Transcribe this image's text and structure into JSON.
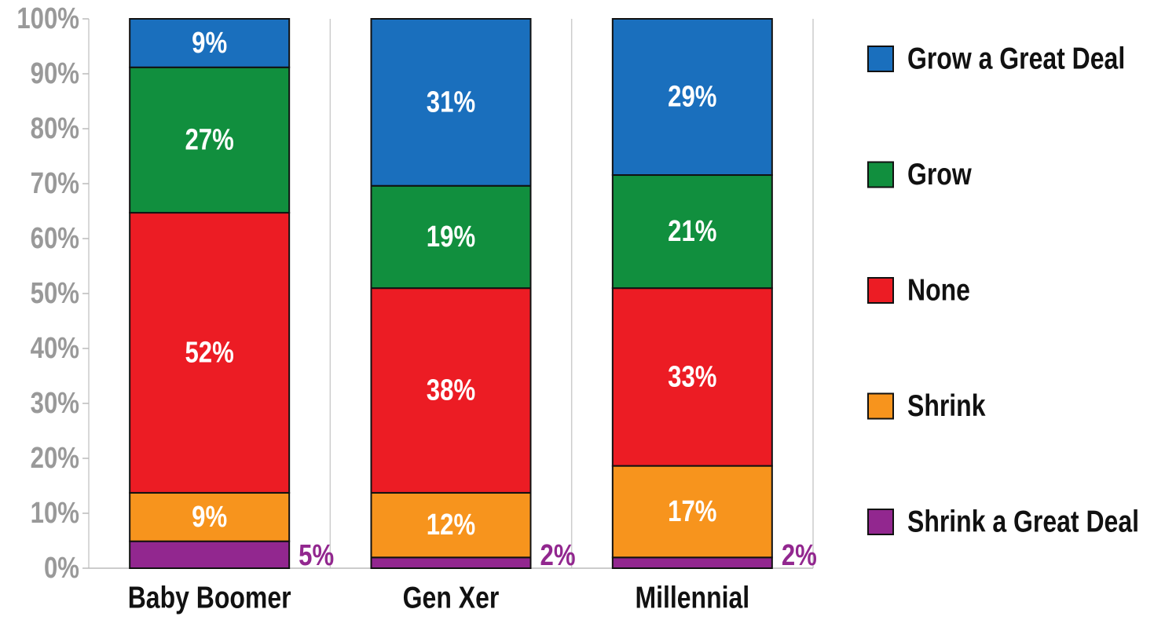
{
  "chart_data": {
    "type": "bar",
    "stacking": "percent",
    "categories": [
      "Baby Boomer",
      "Gen Xer",
      "Millennial"
    ],
    "series": [
      {
        "name": "Shrink a Great Deal",
        "color": "#92278f",
        "values": [
          5,
          2,
          2
        ],
        "value_labels": [
          "5%",
          "2%",
          "2%"
        ]
      },
      {
        "name": "Shrink",
        "color": "#f7941d",
        "values": [
          9,
          12,
          17
        ],
        "value_labels": [
          "9%",
          "12%",
          "17%"
        ]
      },
      {
        "name": "None",
        "color": "#ec1c24",
        "values": [
          52,
          38,
          33
        ],
        "value_labels": [
          "52%",
          "38%",
          "33%"
        ]
      },
      {
        "name": "Grow",
        "color": "#118f3e",
        "values": [
          27,
          19,
          21
        ],
        "value_labels": [
          "27%",
          "19%",
          "21%"
        ]
      },
      {
        "name": "Grow a Great Deal",
        "color": "#1a6fbd",
        "values": [
          9,
          31,
          29
        ],
        "value_labels": [
          "9%",
          "31%",
          "29%"
        ]
      }
    ],
    "ylim": [
      0,
      100
    ],
    "yticks": [
      {
        "value": 0,
        "label": "0%"
      },
      {
        "value": 10,
        "label": "10%"
      },
      {
        "value": 20,
        "label": "20%"
      },
      {
        "value": 30,
        "label": "30%"
      },
      {
        "value": 40,
        "label": "40%"
      },
      {
        "value": 50,
        "label": "50%"
      },
      {
        "value": 60,
        "label": "60%"
      },
      {
        "value": 70,
        "label": "70%"
      },
      {
        "value": 80,
        "label": "80%"
      },
      {
        "value": 90,
        "label": "90%"
      },
      {
        "value": 100,
        "label": "100%"
      }
    ],
    "legend": "right"
  }
}
